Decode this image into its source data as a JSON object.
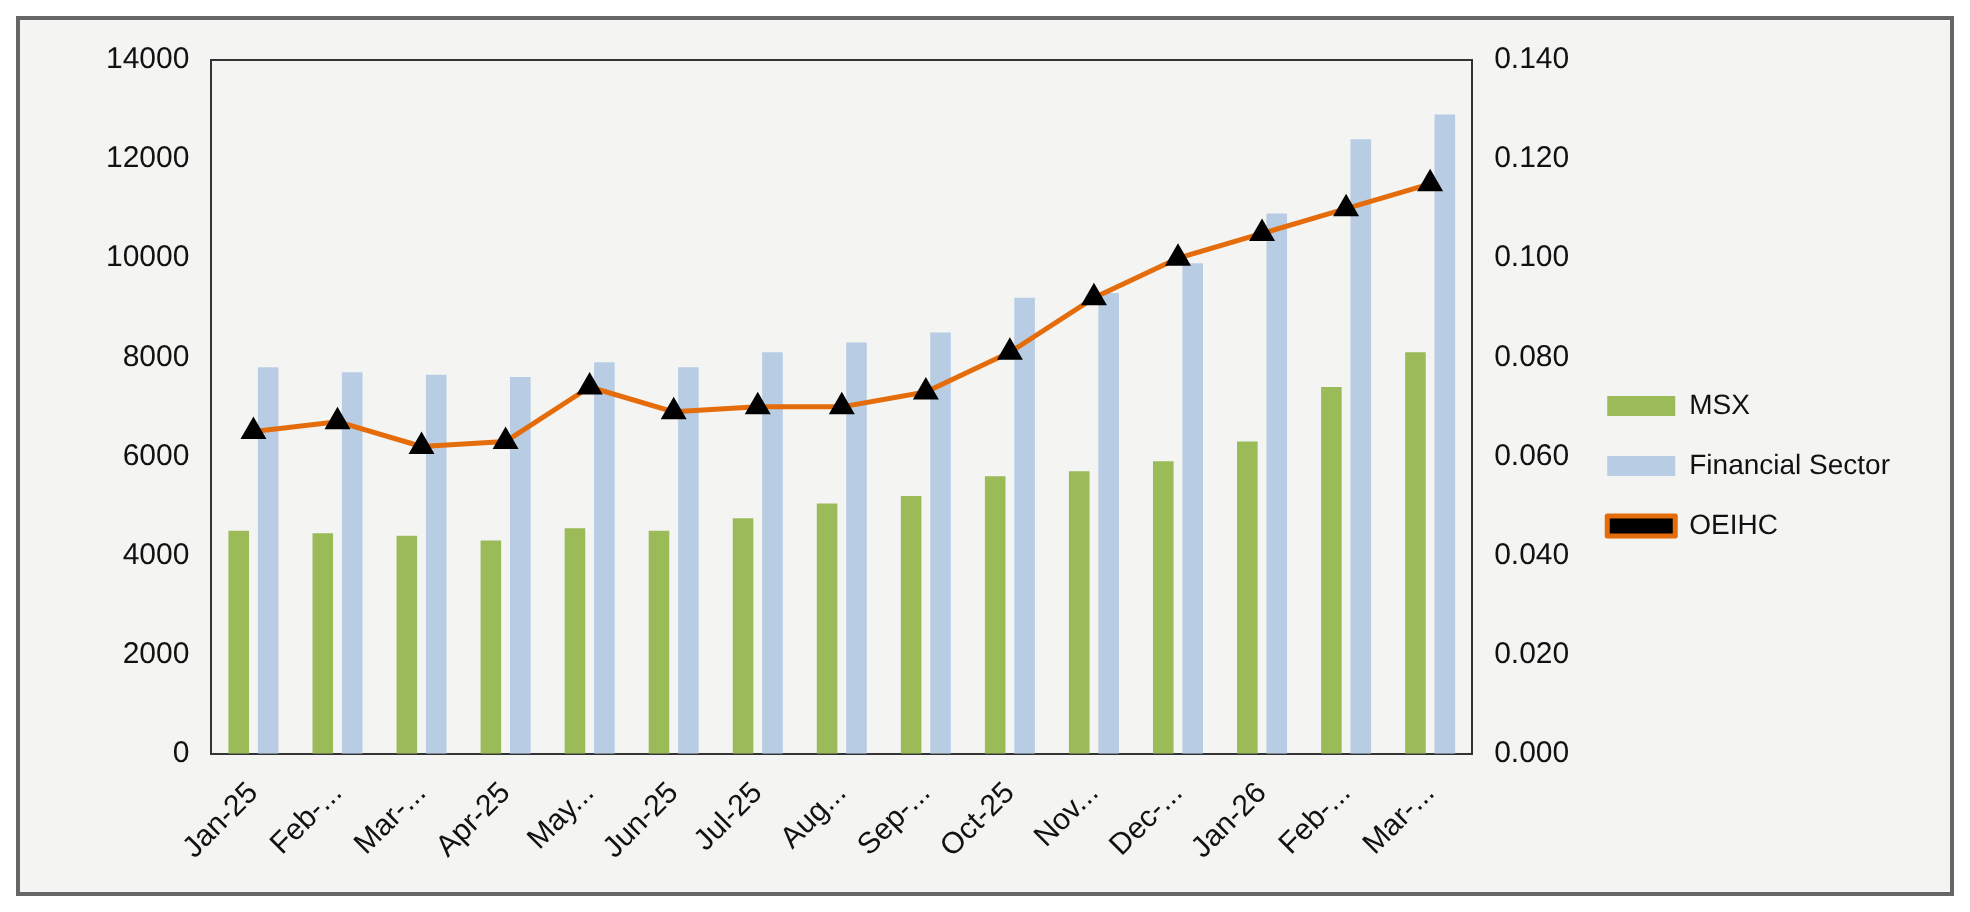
{
  "chart_data": {
    "type": "bar",
    "categories": [
      "Jan-25",
      "Feb-...",
      "Mar-...",
      "Apr-25",
      "May...",
      "Jun-25",
      "Jul-25",
      "Aug...",
      "Sep-...",
      "Oct-25",
      "Nov...",
      "Dec-...",
      "Jan-26",
      "Feb-...",
      "Mar-..."
    ],
    "series": [
      {
        "name": "MSX",
        "color": "#9bbb59",
        "values": [
          4500,
          4450,
          4400,
          4300,
          4550,
          4500,
          4750,
          5050,
          5200,
          5600,
          5700,
          5900,
          6300,
          7400,
          8100
        ]
      },
      {
        "name": "Financial Sector",
        "color": "#b8cce4",
        "values": [
          7800,
          7700,
          7650,
          7600,
          7900,
          7800,
          8100,
          8300,
          8500,
          9200,
          9300,
          9900,
          10900,
          12400,
          12900
        ]
      },
      {
        "name": "OEIHC",
        "type": "line",
        "axis": "y2",
        "color": "#e46c0a",
        "values": [
          0.065,
          0.067,
          0.062,
          0.063,
          0.074,
          0.069,
          0.07,
          0.07,
          0.073,
          0.081,
          0.092,
          0.1,
          0.105,
          0.11,
          0.115
        ]
      }
    ],
    "ylim": [
      0,
      14000
    ],
    "yticks": [
      0,
      2000,
      4000,
      6000,
      8000,
      10000,
      12000,
      14000
    ],
    "y2lim": [
      0,
      0.14
    ],
    "y2ticks": [
      {
        "value": 0,
        "label": "0.000"
      },
      {
        "value": 0.02,
        "label": "0.020"
      },
      {
        "value": 0.04,
        "label": "0.040"
      },
      {
        "value": 0.06,
        "label": "0.060"
      },
      {
        "value": 0.08,
        "label": "0.080"
      },
      {
        "value": 0.1,
        "label": "0.100"
      },
      {
        "value": 0.12,
        "label": "0.120"
      },
      {
        "value": 0.14,
        "label": "0.140"
      }
    ],
    "grid": false,
    "legend": "right",
    "marker": "triangle",
    "line_style": "solid"
  }
}
